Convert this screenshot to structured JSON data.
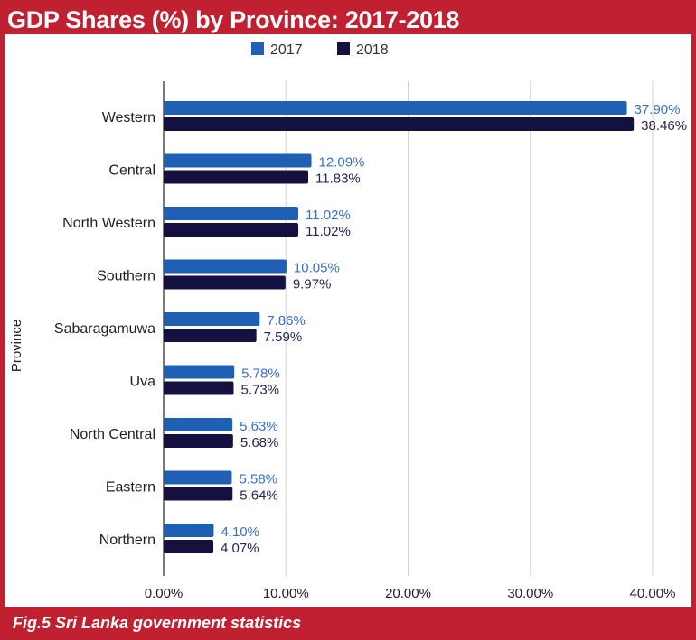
{
  "title": "GDP Shares (%) by Province: 2017-2018",
  "caption": "Fig.5 Sri Lanka government statistics",
  "colors": {
    "frame": "#c0202f",
    "series_2017": "#1f5fb4",
    "series_2018": "#141040",
    "label_2017": "#3a6fc4",
    "label_2018": "#2a2550",
    "grid": "#d3d3d3"
  },
  "chart_data": {
    "type": "bar",
    "orientation": "horizontal",
    "ylabel": "Province",
    "xlabel": "",
    "xlim": [
      0,
      40
    ],
    "x_ticks": [
      "0.00%",
      "10.00%",
      "20.00%",
      "30.00%",
      "40.00%"
    ],
    "grid": true,
    "legend_position": "top",
    "categories": [
      "Western",
      "Central",
      "North Western",
      "Southern",
      "Sabaragamuwa",
      "Uva",
      "North Central",
      "Eastern",
      "Northern"
    ],
    "series": [
      {
        "name": "2017",
        "values": [
          37.9,
          12.09,
          11.02,
          10.05,
          7.86,
          5.78,
          5.63,
          5.58,
          4.1
        ],
        "labels": [
          "37.90%",
          "12.09%",
          "11.02%",
          "10.05%",
          "7.86%",
          "5.78%",
          "5.63%",
          "5.58%",
          "4.10%"
        ]
      },
      {
        "name": "2018",
        "values": [
          38.46,
          11.83,
          11.02,
          9.97,
          7.59,
          5.73,
          5.68,
          5.64,
          4.07
        ],
        "labels": [
          "38.46%",
          "11.83%",
          "11.02%",
          "9.97%",
          "7.59%",
          "5.73%",
          "5.68%",
          "5.64%",
          "4.07%"
        ]
      }
    ]
  }
}
